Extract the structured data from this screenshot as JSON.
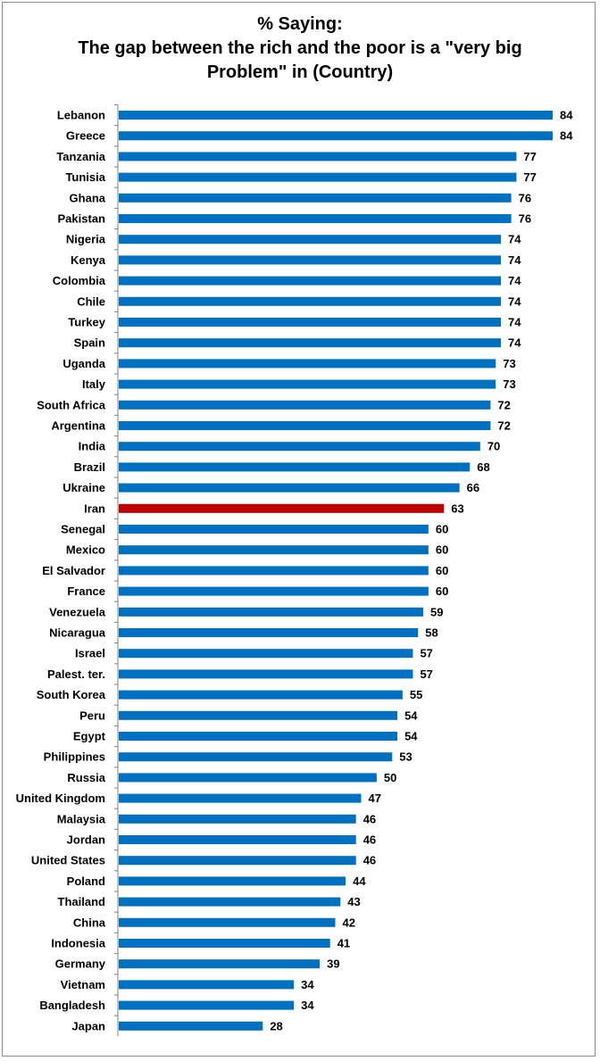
{
  "chart_data": {
    "type": "bar",
    "orientation": "horizontal",
    "title_lines": [
      "% Saying:",
      "The gap between the rich and the poor is a \"very big",
      "Problem\" in (Country)"
    ],
    "categories": [
      "Lebanon",
      "Greece",
      "Tanzania",
      "Tunisia",
      "Ghana",
      "Pakistan",
      "Nigeria",
      "Kenya",
      "Colombia",
      "Chile",
      "Turkey",
      "Spain",
      "Uganda",
      "Italy",
      "South Africa",
      "Argentina",
      "India",
      "Brazil",
      "Ukraine",
      "Iran",
      "Senegal",
      "Mexico",
      "El Salvador",
      "France",
      "Venezuela",
      "Nicaragua",
      "Israel",
      "Palest. ter.",
      "South Korea",
      "Peru",
      "Egypt",
      "Philippines",
      "Russia",
      "United Kingdom",
      "Malaysia",
      "Jordan",
      "United States",
      "Poland",
      "Thailand",
      "China",
      "Indonesia",
      "Germany",
      "Vietnam",
      "Bangladesh",
      "Japan"
    ],
    "values": [
      84,
      84,
      77,
      77,
      76,
      76,
      74,
      74,
      74,
      74,
      74,
      74,
      73,
      73,
      72,
      72,
      70,
      68,
      66,
      63,
      60,
      60,
      60,
      60,
      59,
      58,
      57,
      57,
      55,
      54,
      54,
      53,
      50,
      47,
      46,
      46,
      46,
      44,
      43,
      42,
      41,
      39,
      34,
      34,
      28
    ],
    "xlim": [
      0,
      84
    ],
    "highlight_category": "Iran",
    "colors": {
      "bar": "#0070C0",
      "highlight": "#C00000"
    },
    "data_labels": true,
    "grid": false,
    "legend": "none",
    "xlabel": "",
    "ylabel": ""
  }
}
